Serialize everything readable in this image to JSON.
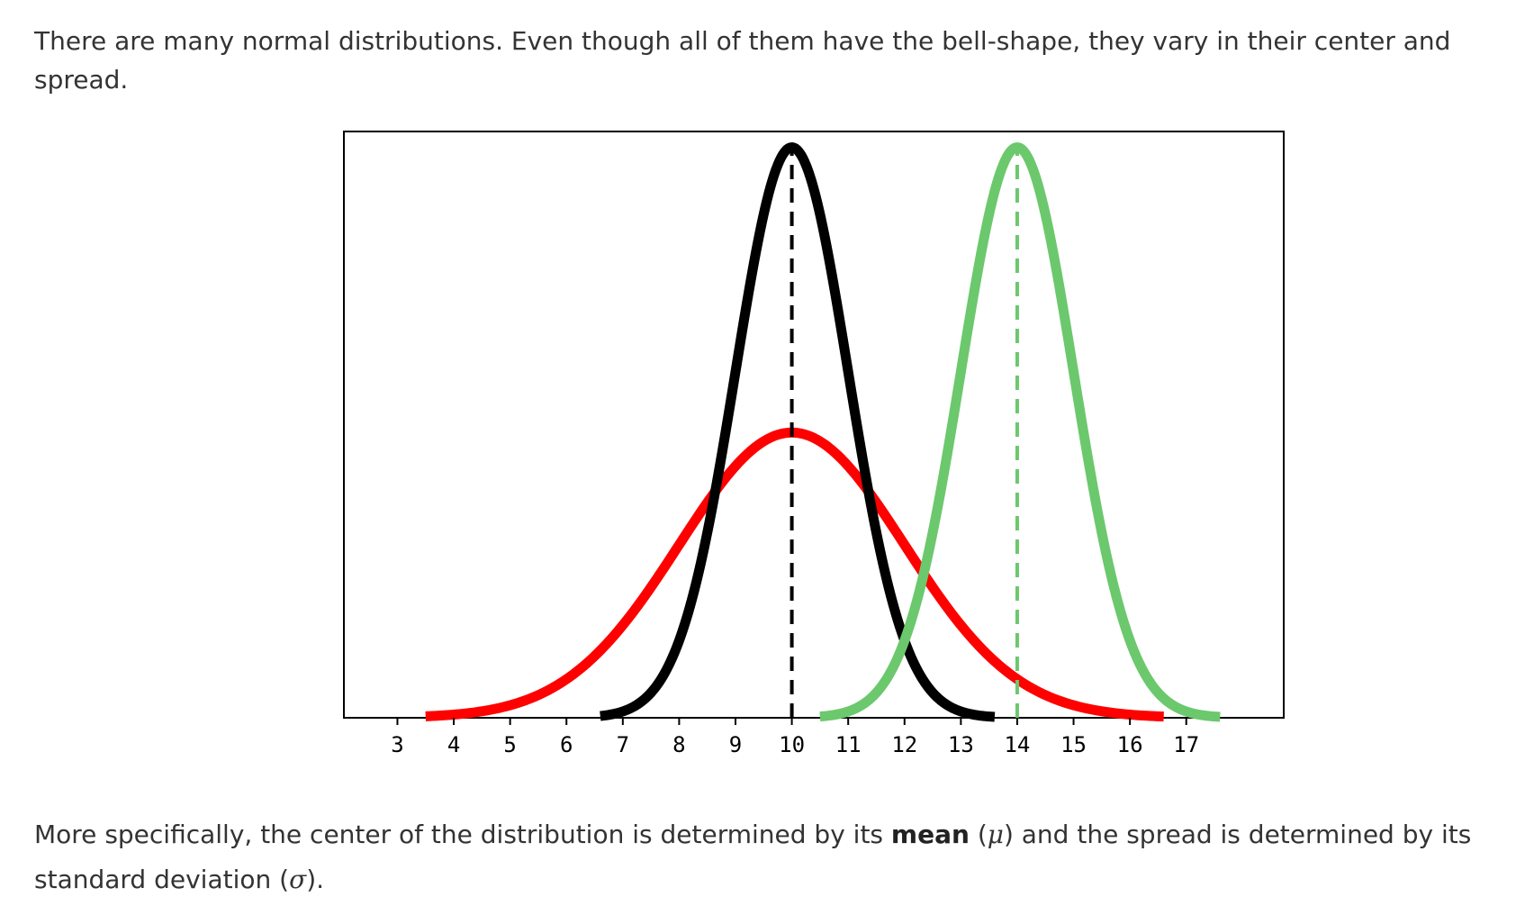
{
  "text": {
    "intro": "There are many normal distributions. Even though all of them have the bell-shape, they vary in their center and spread.",
    "outro_part1": "More specifically, the center of the distribution is determined by its ",
    "outro_mean_word": "mean",
    "outro_part2": " (",
    "outro_mu": "μ",
    "outro_part3": ") and the spread is determined by its standard deviation (",
    "outro_sigma": "σ",
    "outro_part4": ")."
  },
  "chart_data": {
    "type": "line",
    "title": "",
    "xlabel": "",
    "ylabel": "",
    "xlim": [
      2.05,
      18.73
    ],
    "ylim": [
      0,
      0.41
    ],
    "xticks": [
      3,
      4,
      5,
      6,
      7,
      8,
      9,
      10,
      11,
      12,
      13,
      14,
      15,
      16,
      17
    ],
    "grid": false,
    "legend": "none",
    "series": [
      {
        "mean": 10,
        "sd": 2,
        "range": [
          3.5,
          16.6
        ],
        "color": "#ff0000",
        "style": "solid"
      },
      {
        "mean": 10,
        "sd": 1,
        "range": [
          6.6,
          13.6
        ],
        "color": "#000000",
        "style": "solid"
      },
      {
        "mean": 14,
        "sd": 1,
        "range": [
          10.5,
          17.6
        ],
        "color": "#6cc86c",
        "style": "solid"
      }
    ],
    "mean_lines": [
      {
        "x": 10,
        "color": "#000000",
        "style": "dashed"
      },
      {
        "x": 14,
        "color": "#6cc86c",
        "style": "dashed"
      }
    ]
  }
}
